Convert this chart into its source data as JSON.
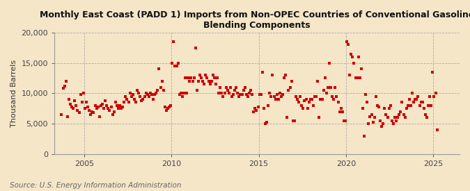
{
  "title": "Monthly East Coast (PADD 1) Imports from Non-OPEC Countries of Conventional Gasoline\nBlending Components",
  "ylabel": "Thousand Barrels",
  "source": "Source: U.S. Energy Information Administration",
  "background_color": "#f5e6c8",
  "plot_bg_color": "#f5e6c8",
  "dot_color": "#cc0000",
  "dot_size": 7,
  "ylim": [
    0,
    20000
  ],
  "yticks": [
    0,
    5000,
    10000,
    15000,
    20000
  ],
  "xlim_start": 2003.3,
  "xlim_end": 2026.5,
  "xticks": [
    2005,
    2010,
    2015,
    2020,
    2025
  ],
  "grid_color": "#aaaaaa",
  "grid_style": "--",
  "title_fontsize": 9.0,
  "axis_fontsize": 8,
  "source_fontsize": 7.5,
  "data_points": {
    "years_months": [
      [
        2003,
        9
      ],
      [
        2003,
        10
      ],
      [
        2003,
        11
      ],
      [
        2003,
        12
      ],
      [
        2004,
        1
      ],
      [
        2004,
        2
      ],
      [
        2004,
        3
      ],
      [
        2004,
        4
      ],
      [
        2004,
        5
      ],
      [
        2004,
        6
      ],
      [
        2004,
        7
      ],
      [
        2004,
        8
      ],
      [
        2004,
        9
      ],
      [
        2004,
        10
      ],
      [
        2004,
        11
      ],
      [
        2004,
        12
      ],
      [
        2005,
        1
      ],
      [
        2005,
        2
      ],
      [
        2005,
        3
      ],
      [
        2005,
        4
      ],
      [
        2005,
        5
      ],
      [
        2005,
        6
      ],
      [
        2005,
        7
      ],
      [
        2005,
        8
      ],
      [
        2005,
        9
      ],
      [
        2005,
        10
      ],
      [
        2005,
        11
      ],
      [
        2005,
        12
      ],
      [
        2006,
        1
      ],
      [
        2006,
        2
      ],
      [
        2006,
        3
      ],
      [
        2006,
        4
      ],
      [
        2006,
        5
      ],
      [
        2006,
        6
      ],
      [
        2006,
        7
      ],
      [
        2006,
        8
      ],
      [
        2006,
        9
      ],
      [
        2006,
        10
      ],
      [
        2006,
        11
      ],
      [
        2006,
        12
      ],
      [
        2007,
        1
      ],
      [
        2007,
        2
      ],
      [
        2007,
        3
      ],
      [
        2007,
        4
      ],
      [
        2007,
        5
      ],
      [
        2007,
        6
      ],
      [
        2007,
        7
      ],
      [
        2007,
        8
      ],
      [
        2007,
        9
      ],
      [
        2007,
        10
      ],
      [
        2007,
        11
      ],
      [
        2007,
        12
      ],
      [
        2008,
        1
      ],
      [
        2008,
        2
      ],
      [
        2008,
        3
      ],
      [
        2008,
        4
      ],
      [
        2008,
        5
      ],
      [
        2008,
        6
      ],
      [
        2008,
        7
      ],
      [
        2008,
        8
      ],
      [
        2008,
        9
      ],
      [
        2008,
        10
      ],
      [
        2008,
        11
      ],
      [
        2008,
        12
      ],
      [
        2009,
        1
      ],
      [
        2009,
        2
      ],
      [
        2009,
        3
      ],
      [
        2009,
        4
      ],
      [
        2009,
        5
      ],
      [
        2009,
        6
      ],
      [
        2009,
        7
      ],
      [
        2009,
        8
      ],
      [
        2009,
        9
      ],
      [
        2009,
        10
      ],
      [
        2009,
        11
      ],
      [
        2009,
        12
      ],
      [
        2010,
        1
      ],
      [
        2010,
        2
      ],
      [
        2010,
        3
      ],
      [
        2010,
        4
      ],
      [
        2010,
        5
      ],
      [
        2010,
        6
      ],
      [
        2010,
        7
      ],
      [
        2010,
        8
      ],
      [
        2010,
        9
      ],
      [
        2010,
        10
      ],
      [
        2010,
        11
      ],
      [
        2010,
        12
      ],
      [
        2011,
        1
      ],
      [
        2011,
        2
      ],
      [
        2011,
        3
      ],
      [
        2011,
        4
      ],
      [
        2011,
        5
      ],
      [
        2011,
        6
      ],
      [
        2011,
        7
      ],
      [
        2011,
        8
      ],
      [
        2011,
        9
      ],
      [
        2011,
        10
      ],
      [
        2011,
        11
      ],
      [
        2011,
        12
      ],
      [
        2012,
        1
      ],
      [
        2012,
        2
      ],
      [
        2012,
        3
      ],
      [
        2012,
        4
      ],
      [
        2012,
        5
      ],
      [
        2012,
        6
      ],
      [
        2012,
        7
      ],
      [
        2012,
        8
      ],
      [
        2012,
        9
      ],
      [
        2012,
        10
      ],
      [
        2012,
        11
      ],
      [
        2012,
        12
      ],
      [
        2013,
        1
      ],
      [
        2013,
        2
      ],
      [
        2013,
        3
      ],
      [
        2013,
        4
      ],
      [
        2013,
        5
      ],
      [
        2013,
        6
      ],
      [
        2013,
        7
      ],
      [
        2013,
        8
      ],
      [
        2013,
        9
      ],
      [
        2013,
        10
      ],
      [
        2013,
        11
      ],
      [
        2013,
        12
      ],
      [
        2014,
        1
      ],
      [
        2014,
        2
      ],
      [
        2014,
        3
      ],
      [
        2014,
        4
      ],
      [
        2014,
        5
      ],
      [
        2014,
        6
      ],
      [
        2014,
        7
      ],
      [
        2014,
        8
      ],
      [
        2014,
        9
      ],
      [
        2014,
        10
      ],
      [
        2014,
        11
      ],
      [
        2014,
        12
      ],
      [
        2015,
        1
      ],
      [
        2015,
        2
      ],
      [
        2015,
        3
      ],
      [
        2015,
        4
      ],
      [
        2015,
        5
      ],
      [
        2015,
        6
      ],
      [
        2015,
        7
      ],
      [
        2015,
        8
      ],
      [
        2015,
        9
      ],
      [
        2015,
        10
      ],
      [
        2015,
        11
      ],
      [
        2015,
        12
      ],
      [
        2016,
        1
      ],
      [
        2016,
        2
      ],
      [
        2016,
        3
      ],
      [
        2016,
        4
      ],
      [
        2016,
        5
      ],
      [
        2016,
        6
      ],
      [
        2016,
        7
      ],
      [
        2016,
        8
      ],
      [
        2016,
        9
      ],
      [
        2016,
        10
      ],
      [
        2016,
        11
      ],
      [
        2016,
        12
      ],
      [
        2017,
        1
      ],
      [
        2017,
        2
      ],
      [
        2017,
        3
      ],
      [
        2017,
        4
      ],
      [
        2017,
        5
      ],
      [
        2017,
        6
      ],
      [
        2017,
        7
      ],
      [
        2017,
        8
      ],
      [
        2017,
        9
      ],
      [
        2017,
        10
      ],
      [
        2017,
        11
      ],
      [
        2017,
        12
      ],
      [
        2018,
        1
      ],
      [
        2018,
        2
      ],
      [
        2018,
        3
      ],
      [
        2018,
        4
      ],
      [
        2018,
        5
      ],
      [
        2018,
        6
      ],
      [
        2018,
        7
      ],
      [
        2018,
        8
      ],
      [
        2018,
        9
      ],
      [
        2018,
        10
      ],
      [
        2018,
        11
      ],
      [
        2018,
        12
      ],
      [
        2019,
        1
      ],
      [
        2019,
        2
      ],
      [
        2019,
        3
      ],
      [
        2019,
        4
      ],
      [
        2019,
        5
      ],
      [
        2019,
        6
      ],
      [
        2019,
        7
      ],
      [
        2019,
        8
      ],
      [
        2019,
        9
      ],
      [
        2019,
        10
      ],
      [
        2019,
        11
      ],
      [
        2019,
        12
      ],
      [
        2020,
        1
      ],
      [
        2020,
        2
      ],
      [
        2020,
        3
      ],
      [
        2020,
        4
      ],
      [
        2020,
        5
      ],
      [
        2020,
        6
      ],
      [
        2020,
        7
      ],
      [
        2020,
        8
      ],
      [
        2020,
        9
      ],
      [
        2020,
        10
      ],
      [
        2020,
        11
      ],
      [
        2020,
        12
      ],
      [
        2021,
        1
      ],
      [
        2021,
        2
      ],
      [
        2021,
        3
      ],
      [
        2021,
        4
      ],
      [
        2021,
        5
      ],
      [
        2021,
        6
      ],
      [
        2021,
        7
      ],
      [
        2021,
        8
      ],
      [
        2021,
        9
      ],
      [
        2021,
        10
      ],
      [
        2021,
        11
      ],
      [
        2021,
        12
      ],
      [
        2022,
        1
      ],
      [
        2022,
        2
      ],
      [
        2022,
        3
      ],
      [
        2022,
        4
      ],
      [
        2022,
        5
      ],
      [
        2022,
        6
      ],
      [
        2022,
        7
      ],
      [
        2022,
        8
      ],
      [
        2022,
        9
      ],
      [
        2022,
        10
      ],
      [
        2022,
        11
      ],
      [
        2022,
        12
      ],
      [
        2023,
        1
      ],
      [
        2023,
        2
      ],
      [
        2023,
        3
      ],
      [
        2023,
        4
      ],
      [
        2023,
        5
      ],
      [
        2023,
        6
      ],
      [
        2023,
        7
      ],
      [
        2023,
        8
      ],
      [
        2023,
        9
      ],
      [
        2023,
        10
      ],
      [
        2023,
        11
      ],
      [
        2023,
        12
      ],
      [
        2024,
        1
      ],
      [
        2024,
        2
      ],
      [
        2024,
        3
      ],
      [
        2024,
        4
      ],
      [
        2024,
        5
      ],
      [
        2024,
        6
      ],
      [
        2024,
        7
      ],
      [
        2024,
        8
      ],
      [
        2024,
        9
      ],
      [
        2024,
        10
      ],
      [
        2024,
        11
      ],
      [
        2024,
        12
      ],
      [
        2025,
        1
      ],
      [
        2025,
        2
      ],
      [
        2025,
        3
      ]
    ],
    "values": [
      6500,
      10800,
      11200,
      12000,
      6200,
      9000,
      8200,
      7800,
      7500,
      8800,
      8000,
      7200,
      6800,
      9800,
      8500,
      10000,
      7500,
      8500,
      7800,
      7200,
      6500,
      7000,
      6800,
      8000,
      7500,
      7800,
      6200,
      8000,
      8200,
      7500,
      8800,
      8000,
      7500,
      7200,
      7800,
      6500,
      7000,
      8500,
      8000,
      7500,
      8000,
      7500,
      7800,
      8500,
      9500,
      9000,
      8500,
      10000,
      9500,
      9800,
      9000,
      8500,
      10500,
      10000,
      9500,
      8800,
      9000,
      9500,
      10000,
      9800,
      9500,
      10000,
      9800,
      9000,
      9800,
      10000,
      10500,
      14000,
      11000,
      12000,
      10500,
      7800,
      7200,
      7500,
      7800,
      8000,
      15000,
      18500,
      14500,
      14500,
      15000,
      9800,
      10000,
      9500,
      10000,
      12500,
      10000,
      12500,
      12000,
      12500,
      12000,
      12500,
      17500,
      10500,
      12000,
      13000,
      12500,
      12000,
      11500,
      13000,
      12500,
      12000,
      11500,
      12000,
      13000,
      12500,
      11500,
      12500,
      10000,
      11000,
      10000,
      9500,
      10000,
      11000,
      10500,
      10000,
      11000,
      9500,
      9800,
      10500,
      11000,
      10000,
      9500,
      9800,
      9800,
      10500,
      11000,
      9800,
      9500,
      10000,
      10500,
      9800,
      7000,
      7500,
      7200,
      7800,
      9800,
      9800,
      13500,
      7500,
      5000,
      5200,
      8000,
      10000,
      9500,
      13000,
      9500,
      9000,
      9800,
      9000,
      10000,
      9500,
      9800,
      12500,
      13000,
      6000,
      10500,
      11000,
      12000,
      5500,
      5500,
      9500,
      9000,
      8500,
      9500,
      8000,
      7500,
      8800,
      9000,
      7500,
      8500,
      9000,
      9000,
      8000,
      9500,
      9500,
      12000,
      6000,
      9000,
      9000,
      10500,
      12500,
      10000,
      11000,
      15000,
      11000,
      9500,
      9000,
      11000,
      9500,
      8500,
      7000,
      7500,
      7000,
      5500,
      5500,
      18500,
      18000,
      13000,
      16500,
      16000,
      15000,
      12500,
      12500,
      16000,
      12500,
      14000,
      7500,
      3000,
      9800,
      8500,
      5000,
      6200,
      6500,
      5200,
      6000,
      9500,
      8000,
      7800,
      5500,
      4500,
      5000,
      7500,
      6500,
      6000,
      7500,
      8000,
      5500,
      5000,
      6000,
      5500,
      6000,
      6500,
      7000,
      8500,
      6500,
      6000,
      7500,
      8000,
      9000,
      8000,
      10000,
      8500,
      9000,
      9000,
      9500,
      8000,
      8500,
      8500,
      7500,
      6500,
      6000,
      8000,
      9500,
      8000,
      13500,
      9500,
      10000,
      4000
    ]
  }
}
